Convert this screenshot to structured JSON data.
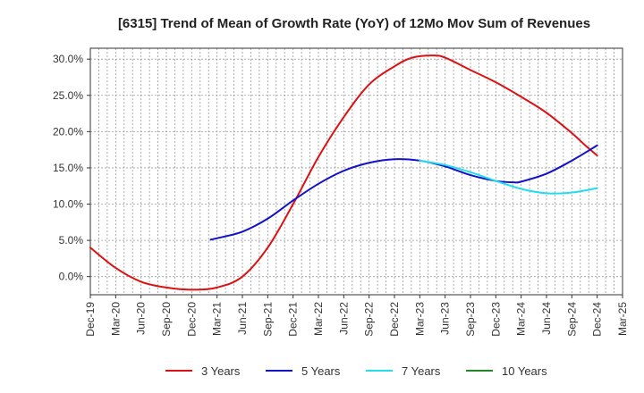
{
  "chart_data": {
    "type": "line",
    "title": "[6315]  Trend of Mean of Growth Rate (YoY) of 12Mo Mov Sum of Revenues",
    "xlabel": "",
    "ylabel": "",
    "ylim": [
      -2.5,
      31.5
    ],
    "y_ticks": [
      0,
      5,
      10,
      15,
      20,
      25,
      30
    ],
    "y_tick_labels": [
      "0.0%",
      "5.0%",
      "10.0%",
      "15.0%",
      "20.0%",
      "25.0%",
      "30.0%"
    ],
    "x_tick_labels": [
      "Dec-19",
      "Mar-20",
      "Jun-20",
      "Sep-20",
      "Dec-20",
      "Mar-21",
      "Jun-21",
      "Sep-21",
      "Dec-21",
      "Mar-22",
      "Jun-22",
      "Sep-22",
      "Dec-22",
      "Mar-23",
      "Jun-23",
      "Sep-23",
      "Dec-23",
      "Mar-24",
      "Jun-24",
      "Sep-24",
      "Dec-24",
      "Mar-25"
    ],
    "grid": true,
    "legend_position": "bottom",
    "series": [
      {
        "name": "3 Years",
        "color": "#dd1111",
        "x": [
          0,
          1,
          2,
          3,
          4,
          5,
          6,
          7,
          8,
          9,
          10,
          11,
          12,
          12.7,
          13.5,
          14,
          15,
          16,
          17,
          18,
          19,
          19.5,
          20
        ],
        "values": [
          4.0,
          1.2,
          -0.7,
          -1.5,
          -1.8,
          -1.5,
          0.0,
          4.0,
          10.0,
          16.5,
          22.0,
          26.5,
          29.0,
          30.2,
          30.5,
          30.2,
          28.5,
          26.8,
          24.8,
          22.6,
          19.8,
          18.2,
          16.7
        ]
      },
      {
        "name": "5 Years",
        "color": "#1111cc",
        "x": [
          4.75,
          5,
          6,
          7,
          8,
          9,
          10,
          11,
          12,
          13,
          14,
          15,
          16,
          16.7,
          17,
          18,
          19,
          20
        ],
        "values": [
          5.1,
          5.3,
          6.2,
          8.0,
          10.5,
          12.8,
          14.6,
          15.7,
          16.2,
          16.0,
          15.2,
          14.0,
          13.2,
          13.0,
          13.1,
          14.2,
          16.0,
          18.1
        ]
      },
      {
        "name": "7 Years",
        "color": "#22ddee",
        "x": [
          13,
          14,
          15,
          16,
          17,
          18,
          19,
          20
        ],
        "values": [
          16.0,
          15.4,
          14.4,
          13.2,
          12.1,
          11.5,
          11.6,
          12.2
        ]
      },
      {
        "name": "10 Years",
        "color": "#228822",
        "x": [],
        "values": []
      }
    ]
  }
}
